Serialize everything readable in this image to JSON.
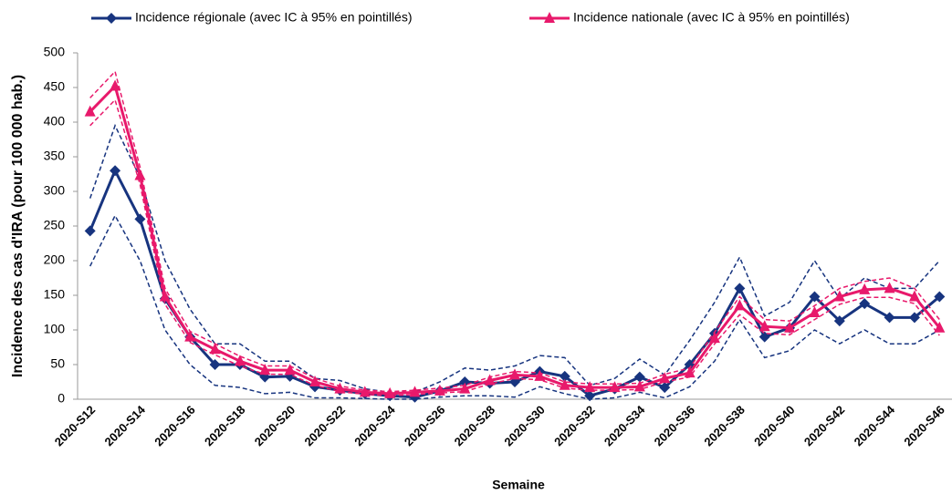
{
  "chart_data": {
    "type": "line",
    "categories": [
      "2020-S12",
      null,
      "2020-S14",
      null,
      "2020-S16",
      null,
      "2020-S18",
      null,
      "2020-S20",
      null,
      "2020-S22",
      null,
      "2020-S24",
      null,
      "2020-S26",
      null,
      "2020-S28",
      null,
      "2020-S30",
      null,
      "2020-S32",
      null,
      "2020-S34",
      null,
      "2020-S36",
      null,
      "2020-S38",
      null,
      "2020-S40",
      null,
      "2020-S42",
      null,
      "2020-S44",
      null,
      "2020-S46"
    ],
    "series": [
      {
        "name": "Incidence régionale (avec IC à 95% en pointillés)",
        "color": "#17347f",
        "marker": "diamond",
        "values": [
          243,
          330,
          260,
          145,
          90,
          50,
          50,
          32,
          33,
          18,
          13,
          8,
          5,
          3,
          12,
          25,
          23,
          25,
          40,
          33,
          5,
          15,
          32,
          17,
          50,
          95,
          160,
          90,
          103,
          148,
          113,
          138,
          118,
          118,
          148
        ],
        "ci_upper": [
          290,
          395,
          320,
          200,
          130,
          80,
          80,
          55,
          55,
          30,
          27,
          15,
          10,
          10,
          25,
          45,
          42,
          48,
          63,
          60,
          20,
          30,
          58,
          35,
          85,
          140,
          205,
          120,
          140,
          200,
          145,
          175,
          160,
          160,
          200
        ],
        "ci_lower": [
          192,
          265,
          200,
          100,
          50,
          20,
          17,
          8,
          10,
          2,
          2,
          1,
          0,
          0,
          3,
          5,
          5,
          3,
          18,
          8,
          0,
          2,
          10,
          2,
          18,
          55,
          115,
          60,
          70,
          100,
          80,
          100,
          80,
          80,
          100
        ]
      },
      {
        "name": "Incidence nationale (avec IC à 95% en pointillés)",
        "color": "#e8196b",
        "marker": "triangle",
        "values": [
          415,
          452,
          323,
          148,
          90,
          72,
          55,
          42,
          42,
          25,
          15,
          10,
          8,
          10,
          12,
          15,
          27,
          35,
          33,
          20,
          17,
          17,
          18,
          30,
          38,
          88,
          135,
          105,
          103,
          125,
          148,
          158,
          160,
          148,
          103
        ],
        "ci_upper": [
          435,
          473,
          335,
          160,
          98,
          80,
          62,
          48,
          48,
          30,
          19,
          13,
          11,
          13,
          16,
          20,
          32,
          40,
          38,
          25,
          22,
          22,
          23,
          36,
          45,
          97,
          148,
          115,
          113,
          135,
          160,
          170,
          175,
          160,
          115
        ],
        "ci_lower": [
          395,
          432,
          310,
          137,
          82,
          64,
          48,
          36,
          36,
          20,
          11,
          7,
          5,
          7,
          9,
          11,
          22,
          30,
          28,
          16,
          13,
          13,
          14,
          25,
          32,
          80,
          122,
          95,
          93,
          115,
          137,
          147,
          147,
          138,
          92
        ]
      }
    ],
    "xlabel": "Semaine",
    "ylabel": "Incidence des cas d'IRA (pour 100 000 hab.)",
    "ylim": [
      0,
      500
    ],
    "yticks": [
      0,
      50,
      100,
      150,
      200,
      250,
      300,
      350,
      400,
      450,
      500
    ],
    "grid": false,
    "legend": "top"
  }
}
